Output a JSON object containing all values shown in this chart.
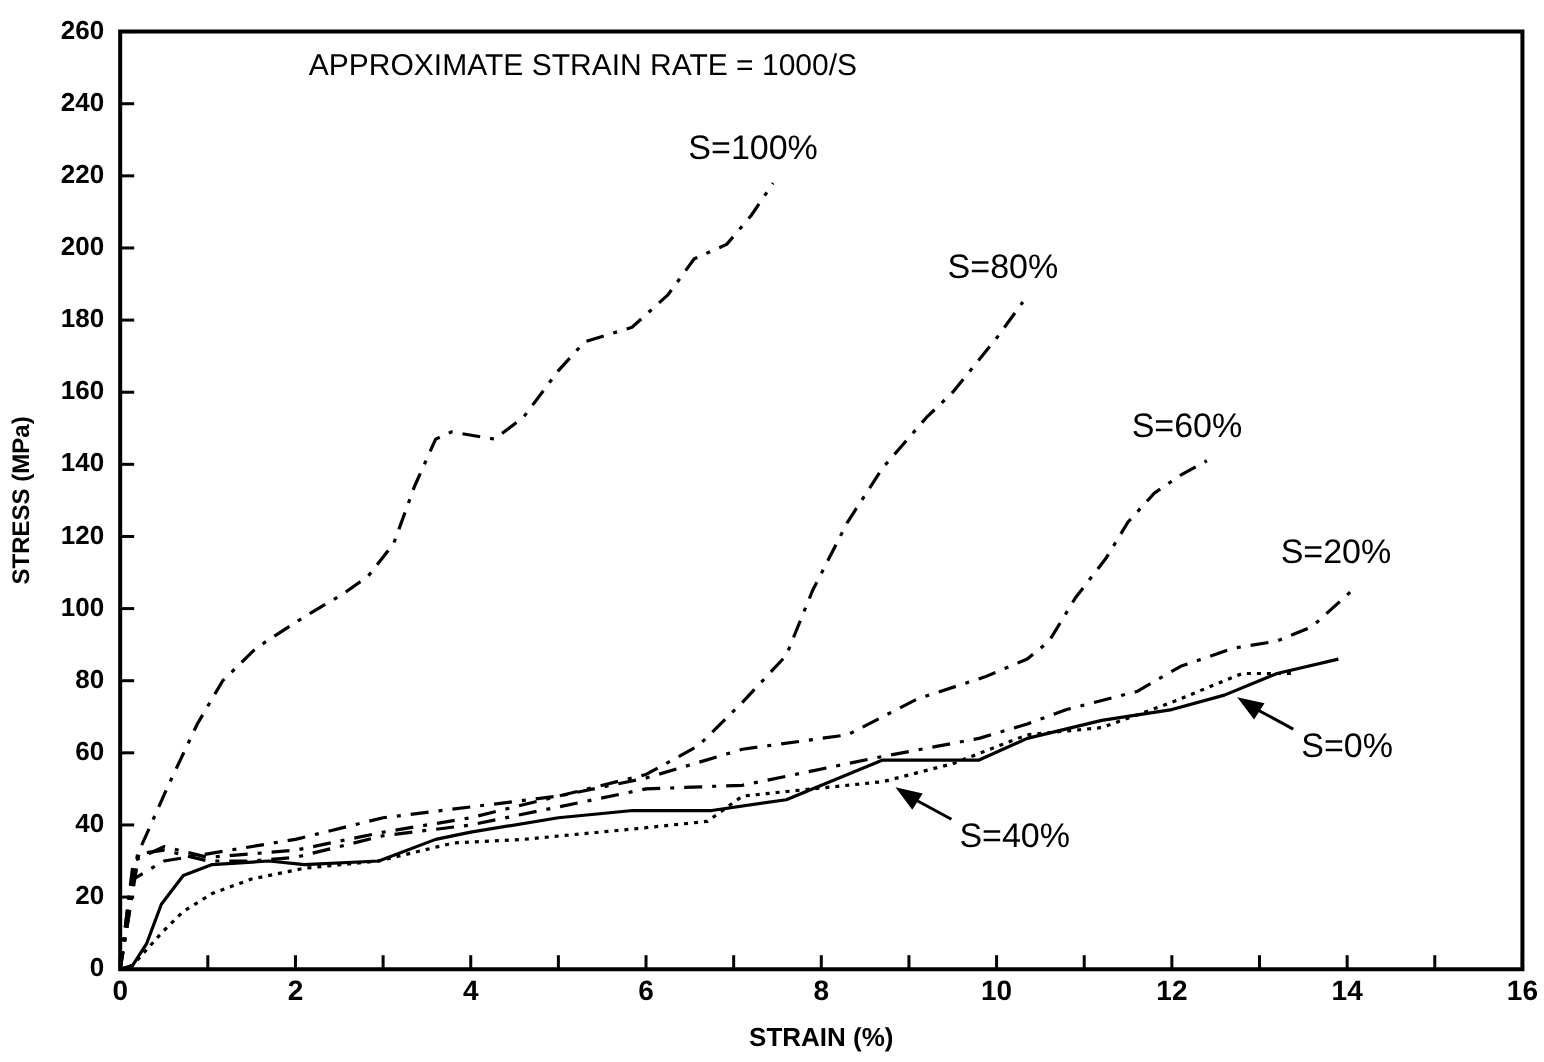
{
  "chart_data": {
    "type": "line",
    "title": "APPROXIMATE STRAIN RATE = 1000/S",
    "xlabel": "STRAIN (%)",
    "ylabel": "STRESS (MPa)",
    "xlim": [
      0,
      16
    ],
    "ylim": [
      0,
      260
    ],
    "xticks": [
      0,
      {
        "value": 1,
        "label": null
      },
      2,
      {
        "value": 3,
        "label": null
      },
      4,
      {
        "value": 5,
        "label": null
      },
      6,
      {
        "value": 7,
        "label": null
      },
      8,
      {
        "value": 9,
        "label": null
      },
      10,
      {
        "value": 11,
        "label": null
      },
      12,
      {
        "value": 13,
        "label": null
      },
      14,
      {
        "value": 15,
        "label": null
      },
      16
    ],
    "yticks": [
      0,
      20,
      40,
      60,
      80,
      100,
      120,
      140,
      160,
      180,
      200,
      220,
      240,
      260
    ],
    "grid": false,
    "legend": false,
    "marker": "none",
    "series": [
      {
        "color": "#000000",
        "line_style": "dashed",
        "x": [
          0,
          0.1,
          0.22,
          0.55,
          0.88,
          1.17,
          1.55,
          1.8,
          2.12,
          2.54,
          2.83,
          3.12,
          3.36,
          3.6,
          3.78,
          4.27,
          4.6,
          5.0,
          5.3,
          5.84,
          6.25,
          6.55,
          6.92,
          7.2,
          7.45
        ],
        "values": [
          0,
          15,
          33,
          51,
          68,
          80,
          89,
          93,
          98,
          104,
          109,
          118,
          134,
          147,
          149,
          147,
          153,
          166,
          174,
          178,
          187,
          197,
          201,
          209,
          218
        ]
      },
      {
        "color": "#000000",
        "line_style": "dashed",
        "x": [
          0,
          0.1,
          0.15,
          0.5,
          1.0,
          2,
          3,
          4,
          5,
          6,
          6.6,
          7.1,
          7.6,
          7.9,
          8.3,
          8.7,
          9.2,
          9.5,
          10.0,
          10.3
        ],
        "values": [
          0,
          20,
          30,
          34,
          31,
          33,
          38,
          42,
          48,
          54,
          62,
          74,
          87,
          105,
          124,
          139,
          153,
          160,
          175,
          185
        ]
      },
      {
        "color": "#000000",
        "line_style": "dashed",
        "x": [
          0,
          0.1,
          0.15,
          0.5,
          1,
          2,
          3,
          4,
          5,
          6,
          7.1,
          8.3,
          9.1,
          9.86,
          10.35,
          10.6,
          10.9,
          11.25,
          11.5,
          11.8,
          12.1,
          12.4
        ],
        "values": [
          0,
          15,
          25,
          30,
          32,
          36,
          42,
          45,
          48,
          53,
          61,
          65,
          75,
          81,
          86,
          91,
          103,
          114,
          124,
          132,
          137,
          141
        ]
      },
      {
        "color": "#000000",
        "line_style": "dashed",
        "x": [
          0,
          0.1,
          0.2,
          0.5,
          1.0,
          1.5,
          2,
          3,
          4,
          5,
          6,
          7.1,
          7.9,
          8.7,
          9.8,
          10.35,
          10.8,
          11.6,
          12.1,
          12.7,
          13.2,
          13.6,
          14.1
        ],
        "values": [
          0,
          20,
          32,
          33,
          30,
          30,
          31,
          37,
          40,
          45,
          50,
          51,
          55,
          59,
          64,
          68,
          72,
          77,
          84,
          89,
          91,
          95,
          106
        ]
      },
      {
        "color": "#000000",
        "line_style": "solid",
        "x": [
          0,
          0.14,
          0.3,
          0.47,
          0.72,
          1.05,
          1.7,
          2.1,
          2.95,
          3.6,
          4.0,
          5.0,
          5.85,
          6.75,
          7.6,
          8.7,
          9.8,
          10.35,
          11.2,
          12,
          12.6,
          13.2,
          13.9
        ],
        "values": [
          0,
          1,
          7,
          18,
          26,
          29,
          30,
          29,
          30,
          36,
          38,
          42,
          44,
          44,
          47,
          58,
          58,
          64,
          69,
          72,
          76,
          82,
          86
        ]
      },
      {
        "color": "#000000",
        "line_style": "dotted",
        "x": [
          0,
          0.14,
          0.47,
          0.72,
          1.05,
          1.5,
          2.1,
          2.95,
          3.8,
          4.6,
          5.9,
          6.7,
          7.1,
          7.9,
          8.7,
          9.5,
          10.35,
          11.2,
          12,
          12.8,
          13.4
        ],
        "values": [
          0,
          1,
          10,
          16,
          21,
          25,
          28,
          30,
          35,
          36,
          39,
          41,
          48,
          50,
          52,
          57,
          65,
          67,
          74,
          82,
          82
        ]
      }
    ],
    "annotations": [
      {
        "text": "S=100%",
        "x": 7.45,
        "y": 218
      },
      {
        "text": "S=80%",
        "x": 10.3,
        "y": 185
      },
      {
        "text": "S=60%",
        "x": 12.4,
        "y": 141
      },
      {
        "text": "S=20%",
        "x": 14.1,
        "y": 106
      },
      {
        "text": "S=0%",
        "x": 12.7,
        "y": 76
      },
      {
        "text": "S=40%",
        "x": 8.8,
        "y": 51
      }
    ]
  }
}
